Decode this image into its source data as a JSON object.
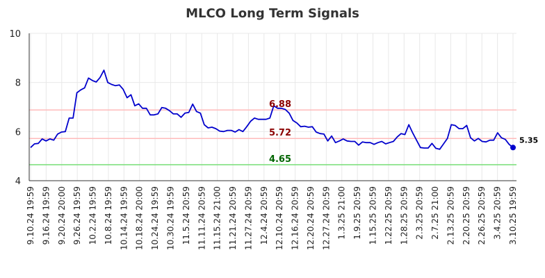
{
  "chart_data": {
    "type": "line",
    "title": "MLCO Long Term Signals",
    "xlabel": "",
    "ylabel": "",
    "ylim": [
      4,
      10
    ],
    "yticks": [
      "4",
      "6",
      "8",
      "10"
    ],
    "grid": true,
    "x_tick_labels": [
      "9.10.24 19:59",
      "9.16.24 19:59",
      "9.20.24 20:00",
      "9.26.24 19:59",
      "10.2.24 19:59",
      "10.8.24 19:59",
      "10.14.24 19:59",
      "10.18.24 20:00",
      "10.24.24 19:59",
      "10.30.24 19:59",
      "11.5.24 20:59",
      "11.11.24 20:59",
      "11.15.24 21:00",
      "11.21.24 20:59",
      "11.27.24 20:59",
      "12.4.24 20:59",
      "12.10.24 20:59",
      "12.16.24 20:59",
      "12.20.24 20:59",
      "12.27.24 20:59",
      "1.3.25 21:00",
      "1.9.25 20:59",
      "1.15.25 20:59",
      "1.22.25 20:59",
      "1.28.25 20:59",
      "2.3.25 20:59",
      "2.7.25 21:00",
      "2.13.25 20:59",
      "2.20.25 20:59",
      "2.26.25 20:59",
      "3.4.25 20:59",
      "3.10.25 19:59"
    ],
    "series": [
      {
        "color": "#0000cc",
        "values": [
          5.35,
          5.5,
          5.52,
          5.7,
          5.62,
          5.7,
          5.65,
          5.9,
          5.98,
          6.0,
          6.55,
          6.55,
          7.58,
          7.7,
          7.78,
          8.18,
          8.08,
          8.02,
          8.2,
          8.5,
          8.0,
          7.92,
          7.87,
          7.9,
          7.72,
          7.38,
          7.5,
          7.05,
          7.13,
          6.95,
          6.95,
          6.68,
          6.68,
          6.72,
          6.98,
          6.95,
          6.85,
          6.72,
          6.72,
          6.58,
          6.75,
          6.78,
          7.12,
          6.82,
          6.75,
          6.28,
          6.15,
          6.18,
          6.12,
          6.02,
          6.0,
          6.05,
          6.05,
          5.98,
          6.08,
          6.0,
          6.2,
          6.42,
          6.55,
          6.5,
          6.5,
          6.5,
          6.55,
          7.05,
          6.95,
          6.95,
          6.9,
          6.75,
          6.45,
          6.35,
          6.2,
          6.22,
          6.18,
          6.2,
          5.98,
          5.92,
          5.9,
          5.62,
          5.82,
          5.55,
          5.62,
          5.7,
          5.62,
          5.6,
          5.6,
          5.45,
          5.58,
          5.55,
          5.55,
          5.48,
          5.55,
          5.6,
          5.5,
          5.55,
          5.6,
          5.78,
          5.92,
          5.88,
          6.28,
          5.95,
          5.65,
          5.35,
          5.33,
          5.33,
          5.52,
          5.32,
          5.28,
          5.5,
          5.72,
          6.28,
          6.25,
          6.12,
          6.12,
          6.25,
          5.75,
          5.62,
          5.72,
          5.6,
          5.58,
          5.65,
          5.65,
          5.95,
          5.75,
          5.68,
          5.48,
          5.35
        ]
      }
    ],
    "reference_lines": [
      {
        "label": "6.88",
        "value": 6.88,
        "line_color": "#ffbbbb",
        "text_color": "#8b0000"
      },
      {
        "label": "5.72",
        "value": 5.72,
        "line_color": "#ffbbbb",
        "text_color": "#8b0000"
      },
      {
        "label": "4.65",
        "value": 4.65,
        "line_color": "#77dd77",
        "text_color": "#006400"
      }
    ],
    "last_value_label": "5.35"
  }
}
